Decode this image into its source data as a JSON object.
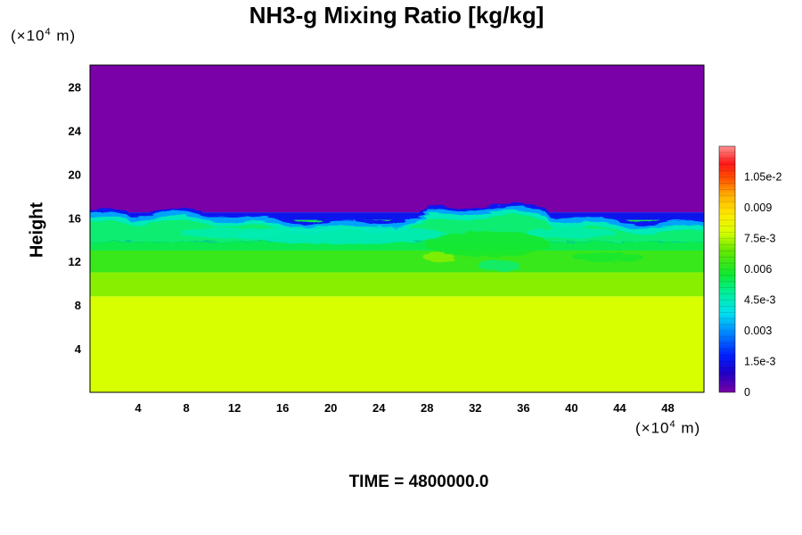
{
  "chart_data": {
    "type": "heatmap",
    "title": "NH3-g Mixing Ratio [kg/kg]",
    "ylabel": "Height",
    "x_unit": "m",
    "y_unit": "m",
    "unit_multiplier": "×10⁴",
    "xlim": [
      0,
      51
    ],
    "ylim": [
      0,
      30
    ],
    "x_ticks": [
      "4",
      "8",
      "12",
      "16",
      "20",
      "24",
      "28",
      "32",
      "36",
      "40",
      "44",
      "48"
    ],
    "y_ticks": [
      "4",
      "8",
      "12",
      "16",
      "20",
      "24",
      "28"
    ],
    "colorbar": {
      "range": [
        0,
        0.012
      ],
      "tick_labels": [
        "0",
        "1.5e-3",
        "0.003",
        "4.5e-3",
        "0.006",
        "7.5e-3",
        "0.009",
        "1.05e-2"
      ],
      "tick_values": [
        0,
        0.0015,
        0.003,
        0.0045,
        0.006,
        0.0075,
        0.009,
        0.0105
      ]
    },
    "field": {
      "description_layers": [
        {
          "height_range": [
            0,
            8.8
          ],
          "value": 0.0078
        },
        {
          "height_range": [
            8.8,
            11
          ],
          "value": 0.0072
        },
        {
          "height_range": [
            11,
            13
          ],
          "value": 0.0063
        },
        {
          "height_range": [
            13,
            15.8
          ],
          "value": 0.0055
        },
        {
          "height_range": [
            16.5,
            30
          ],
          "value": 0.0
        }
      ]
    },
    "time_label": "TIME = 4800000.0"
  },
  "text": {
    "title": "NH3-g Mixing Ratio [kg/kg]",
    "y_unit_prefix": "(×10",
    "y_unit_exp": "4",
    "y_unit_suffix": " m)",
    "x_unit_prefix": "(×10",
    "x_unit_exp": "4",
    "x_unit_suffix": " m)",
    "ylabel": "Height",
    "time": "TIME = 4800000.0"
  }
}
